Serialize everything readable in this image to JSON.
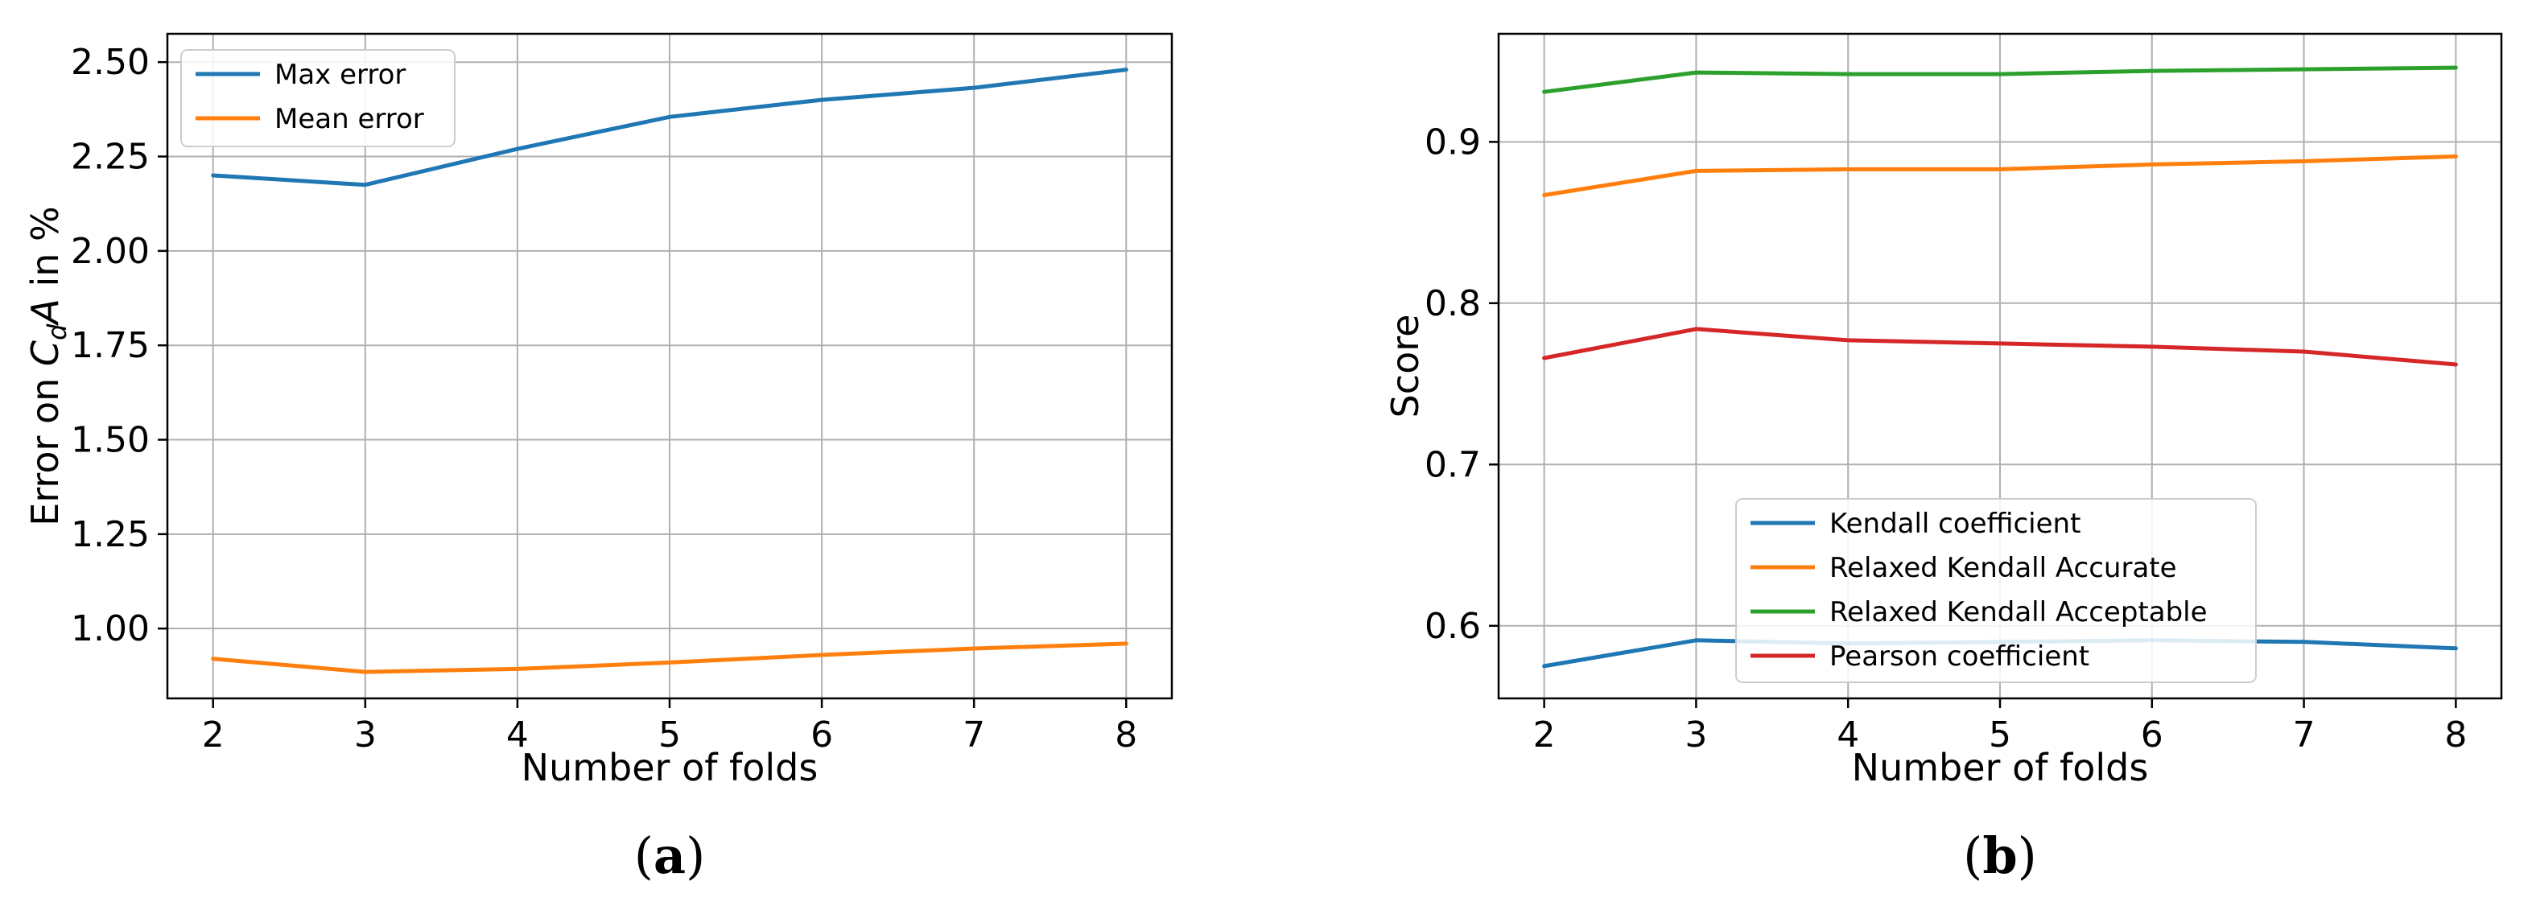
{
  "chart_data": [
    {
      "type": "line",
      "panel_label": "a",
      "xlabel": "Number of folds",
      "ylabel_parts": [
        "Error on ",
        "C",
        "d",
        "A",
        " in %"
      ],
      "x": [
        2,
        3,
        4,
        5,
        6,
        7,
        8
      ],
      "xlim": [
        1.7,
        8.3
      ],
      "ylim": [
        0.815,
        2.575
      ],
      "yticks": [
        1.0,
        1.25,
        1.5,
        1.75,
        2.0,
        2.25,
        2.5
      ],
      "ytick_labels": [
        "1.00",
        "1.25",
        "1.50",
        "1.75",
        "2.00",
        "2.25",
        "2.50"
      ],
      "grid": true,
      "legend_position": "upper-left",
      "series": [
        {
          "name": "Max error",
          "color": "#1f77b4",
          "values": [
            2.2,
            2.175,
            2.27,
            2.355,
            2.4,
            2.432,
            2.48
          ]
        },
        {
          "name": "Mean error",
          "color": "#ff7f0e",
          "values": [
            0.92,
            0.885,
            0.893,
            0.91,
            0.93,
            0.947,
            0.96
          ]
        }
      ]
    },
    {
      "type": "line",
      "panel_label": "b",
      "xlabel": "Number of folds",
      "ylabel": "Score",
      "x": [
        2,
        3,
        4,
        5,
        6,
        7,
        8
      ],
      "xlim": [
        1.7,
        8.3
      ],
      "ylim": [
        0.555,
        0.967
      ],
      "yticks": [
        0.6,
        0.7,
        0.8,
        0.9
      ],
      "ytick_labels": [
        "0.6",
        "0.7",
        "0.8",
        "0.9"
      ],
      "grid": true,
      "legend_position": "lower-center",
      "series": [
        {
          "name": "Kendall coefficient",
          "color": "#1f77b4",
          "values": [
            0.575,
            0.591,
            0.589,
            0.59,
            0.591,
            0.59,
            0.586
          ]
        },
        {
          "name": "Relaxed Kendall Accurate",
          "color": "#ff7f0e",
          "values": [
            0.867,
            0.882,
            0.883,
            0.883,
            0.886,
            0.888,
            0.891
          ]
        },
        {
          "name": "Relaxed Kendall Acceptable",
          "color": "#2ca02c",
          "values": [
            0.931,
            0.943,
            0.942,
            0.942,
            0.944,
            0.945,
            0.946
          ]
        },
        {
          "name": "Pearson coefficient",
          "color": "#d62728",
          "values": [
            0.766,
            0.784,
            0.777,
            0.775,
            0.773,
            0.77,
            0.762
          ]
        }
      ]
    }
  ]
}
